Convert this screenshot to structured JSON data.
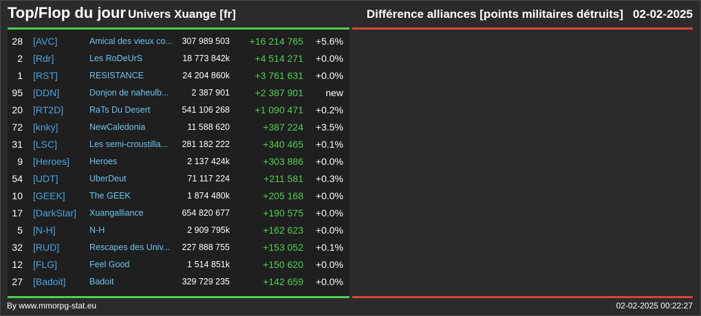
{
  "header": {
    "title": "Top/Flop du jour",
    "universe": "Univers Xuange [fr]",
    "ranking_label": "Différence alliances [points militaires détruits]",
    "date": "02-02-2025"
  },
  "colors": {
    "positive": "#4fd14f",
    "negative": "#d9453d",
    "tag": "#4aa3e0",
    "name": "#6cc4f0"
  },
  "top": [
    {
      "rank": "28",
      "tag": "[AVC]",
      "name": "Amical des vieux co...",
      "total": "307 989 503",
      "delta": "+16 214 765",
      "pct": "+5.6%"
    },
    {
      "rank": "2",
      "tag": "[Rdr]",
      "name": "Les RoDeUrS",
      "total": "18 773 842k",
      "delta": "+4 514 271",
      "pct": "+0.0%"
    },
    {
      "rank": "1",
      "tag": "[RST]",
      "name": "RESISTANCE",
      "total": "24 204 860k",
      "delta": "+3 761 631",
      "pct": "+0.0%"
    },
    {
      "rank": "95",
      "tag": "[DDN]",
      "name": "Donjon de naheulb...",
      "total": "2 387 901",
      "delta": "+2 387 901",
      "pct": "new"
    },
    {
      "rank": "20",
      "tag": "[RT2D]",
      "name": "RaTs Du Desert",
      "total": "541 106 268",
      "delta": "+1 090 471",
      "pct": "+0.2%"
    },
    {
      "rank": "72",
      "tag": "[knky]",
      "name": "NewCaledonia",
      "total": "11 588 620",
      "delta": "+387 224",
      "pct": "+3.5%"
    },
    {
      "rank": "31",
      "tag": "[LSC]",
      "name": "Les semi-croustilla...",
      "total": "281 182 222",
      "delta": "+340 465",
      "pct": "+0.1%"
    },
    {
      "rank": "9",
      "tag": "[Heroes]",
      "name": "Heroes",
      "total": "2 137 424k",
      "delta": "+303 886",
      "pct": "+0.0%"
    },
    {
      "rank": "54",
      "tag": "[UDT]",
      "name": "UberDeut",
      "total": "71 117 224",
      "delta": "+211 581",
      "pct": "+0.3%"
    },
    {
      "rank": "10",
      "tag": "[GEEK]",
      "name": "The GEEK",
      "total": "1 874 480k",
      "delta": "+205 168",
      "pct": "+0.0%"
    },
    {
      "rank": "17",
      "tag": "[DarkStar]",
      "name": "Xuangalliance",
      "total": "654 820 677",
      "delta": "+190 575",
      "pct": "+0.0%"
    },
    {
      "rank": "5",
      "tag": "[N-H]",
      "name": "N-H",
      "total": "2 909 795k",
      "delta": "+162 623",
      "pct": "+0.0%"
    },
    {
      "rank": "32",
      "tag": "[RUD]",
      "name": "Rescapes des Univ...",
      "total": "227 888 755",
      "delta": "+153 052",
      "pct": "+0.1%"
    },
    {
      "rank": "12",
      "tag": "[FLG]",
      "name": "Feel Good",
      "total": "1 514 851k",
      "delta": "+150 620",
      "pct": "+0.0%"
    },
    {
      "rank": "27",
      "tag": "[Badoit]",
      "name": "Badoit",
      "total": "329 729 235",
      "delta": "+142 659",
      "pct": "+0.0%"
    }
  ],
  "footer": {
    "source": "By www.mmorpg-stat.eu",
    "timestamp": "02-02-2025 00:22:27"
  }
}
